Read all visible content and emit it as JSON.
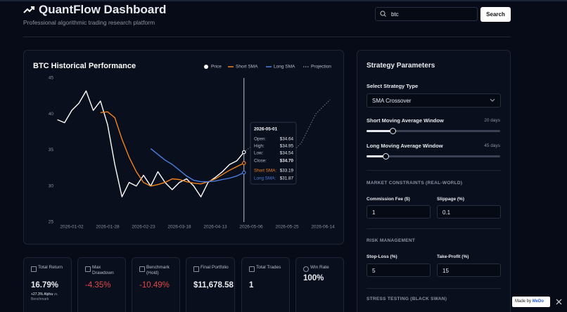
{
  "header": {
    "title": "QuantFlow Dashboard",
    "subtitle": "Professional algorithmic trading research platform",
    "search_value": "btc",
    "search_button": "Search"
  },
  "chart_data": {
    "type": "line",
    "title": "BTC Historical Performance",
    "categories": [
      null,
      null,
      "2026-01-02",
      null,
      null,
      null,
      null,
      "2026-01-28",
      null,
      null,
      null,
      null,
      "2026-02-23",
      null,
      null,
      null,
      null,
      "2026-03-18",
      null,
      null,
      null,
      null,
      "2026-04-13",
      null,
      null,
      null,
      null,
      "2026-05-06",
      null,
      null,
      null,
      null,
      "2026-05-25",
      null,
      null,
      null,
      null,
      "2026-06-14",
      null
    ],
    "series": [
      {
        "name": "Price",
        "color": "#ffffff",
        "values": [
          39.2,
          38.8,
          40.5,
          41.5,
          43.2,
          40.5,
          41.8,
          38.5,
          33,
          28.5,
          30.5,
          30,
          31.5,
          30,
          32,
          30.5,
          29.5,
          30.5,
          31,
          30,
          28.5,
          30.5,
          31.2,
          32,
          33,
          33.5,
          34.7,
          null,
          null,
          null,
          null,
          null,
          null,
          null,
          null,
          null,
          null,
          null,
          null
        ]
      },
      {
        "name": "Short SMA",
        "color": "#f0821e",
        "values": [
          null,
          null,
          null,
          null,
          null,
          null,
          40.2,
          40.3,
          39.5,
          36.5,
          34,
          32,
          30.5,
          30,
          30.2,
          30.5,
          31,
          30.9,
          30.6,
          30.4,
          30.3,
          30.6,
          31,
          31.6,
          32.2,
          32.7,
          33.19,
          null,
          null,
          null,
          null,
          null,
          null,
          null,
          null,
          null,
          null,
          null,
          null
        ]
      },
      {
        "name": "Long SMA",
        "color": "#4a7fe0",
        "values": [
          null,
          null,
          null,
          null,
          null,
          null,
          null,
          null,
          null,
          null,
          null,
          null,
          null,
          35.2,
          34.4,
          33.6,
          33,
          32.2,
          31.4,
          30.8,
          30.6,
          30.6,
          30.7,
          30.9,
          31.1,
          31.4,
          31.87,
          null,
          null,
          null,
          null,
          null,
          null,
          null,
          null,
          null,
          null,
          null,
          null
        ]
      },
      {
        "name": "Projection",
        "color": "#7a7f8c",
        "dashed": true,
        "values": [
          null,
          null,
          null,
          null,
          null,
          null,
          null,
          null,
          null,
          null,
          null,
          null,
          null,
          null,
          null,
          null,
          null,
          null,
          null,
          null,
          null,
          null,
          null,
          null,
          null,
          null,
          34.7,
          35.5,
          36.5,
          37.8,
          38.5,
          37,
          36,
          35,
          36,
          38,
          40,
          41,
          42
        ]
      }
    ],
    "ylim": [
      25,
      45
    ],
    "yticks": [
      25,
      30,
      35,
      40,
      45
    ],
    "grid": false,
    "legend": "top-right",
    "tooltip": {
      "date": "2026-05-01",
      "rows": [
        {
          "label": "Open:",
          "value": "$34.64"
        },
        {
          "label": "High:",
          "value": "$34.95"
        },
        {
          "label": "Low:",
          "value": "$34.54"
        },
        {
          "label": "Close:",
          "value": "$34.70"
        },
        {
          "label": "Short SMA:",
          "value": "$33.19"
        },
        {
          "label": "Long SMA:",
          "value": "$31.87"
        }
      ]
    }
  },
  "metrics": [
    {
      "label": "Total Return",
      "value": "16.79%",
      "note_strong": "+27.3% Alpha",
      "note": "vs. Benchmark"
    },
    {
      "label": "Max Drawdown",
      "value": "-4.35%",
      "color": "#e04848"
    },
    {
      "label": "Benchmark (Hold)",
      "value": "-10.49%",
      "color": "#e04848"
    },
    {
      "label": "Final Portfolio",
      "value": "$11,678.58"
    },
    {
      "label": "Total Trades",
      "value": "1"
    },
    {
      "label": "Win Rate",
      "value": "100%"
    }
  ],
  "strategy": {
    "title": "Strategy Parameters",
    "type_label": "Select Strategy Type",
    "type_value": "SMA Crossover",
    "short_label": "Short Moving Average Window",
    "short_value": "20 days",
    "long_label": "Long Moving Average Window",
    "long_value": "45 days",
    "market_title": "MARKET CONSTRAINTS (REAL-WORLD)",
    "commission_label": "Commission Fee ($)",
    "commission_value": "1",
    "slippage_label": "Slippage (%)",
    "slippage_value": "0.1",
    "risk_title": "RISK MANAGEMENT",
    "stop_label": "Stop-Loss (%)",
    "stop_value": "5",
    "take_label": "Take-Profit (%)",
    "take_value": "15",
    "stress_title": "STRESS TESTING (BLACK SWAN)"
  },
  "badge": {
    "text": "Made by",
    "brand": "MeDo"
  }
}
